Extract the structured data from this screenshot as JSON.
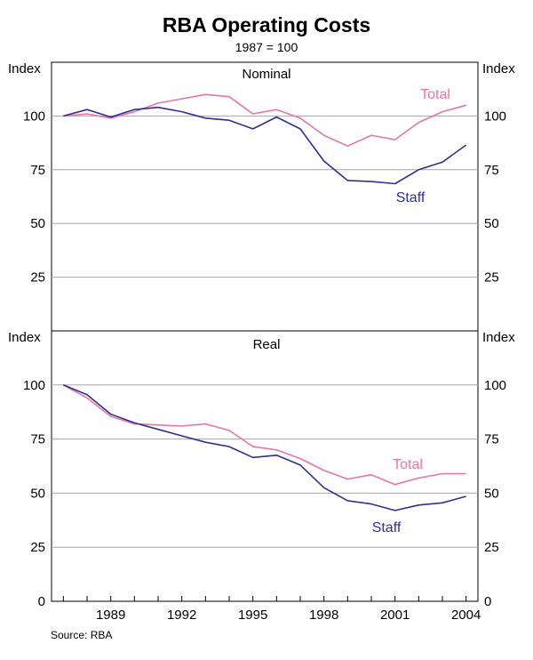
{
  "title": "RBA Operating Costs",
  "subtitle": "1987 = 100",
  "source": "Source: RBA",
  "colors": {
    "total": "#e8769f",
    "staff": "#2e3192",
    "grid": "#a6a6a6",
    "axis": "#000000"
  },
  "chart_data": [
    {
      "type": "line",
      "title": "Nominal",
      "ylabel": "Index",
      "ylim": [
        0,
        125
      ],
      "yticks": [
        25,
        50,
        75,
        100
      ],
      "xlim": [
        1986.5,
        2004.5
      ],
      "grid": true,
      "x": [
        1987,
        1988,
        1989,
        1990,
        1991,
        1992,
        1993,
        1994,
        1995,
        1996,
        1997,
        1998,
        1999,
        2000,
        2001,
        2002,
        2003,
        2004
      ],
      "series": [
        {
          "name": "Total",
          "key": "total",
          "values": [
            100,
            101,
            99,
            102,
            106,
            108,
            110,
            109,
            101,
            103,
            99,
            91,
            86,
            91,
            89,
            97,
            102,
            105
          ]
        },
        {
          "name": "Staff",
          "key": "staff",
          "values": [
            100,
            103,
            99.5,
            103,
            104,
            102,
            99,
            98,
            94,
            99.5,
            94,
            79,
            70,
            69.5,
            68.5,
            75,
            78.5,
            86.5
          ]
        }
      ]
    },
    {
      "type": "line",
      "title": "Real",
      "ylabel": "Index",
      "ylim": [
        0,
        125
      ],
      "yticks": [
        0,
        25,
        50,
        75,
        100
      ],
      "xlim": [
        1986.5,
        2004.5
      ],
      "grid": true,
      "x": [
        1987,
        1988,
        1989,
        1990,
        1991,
        1992,
        1993,
        1994,
        1995,
        1996,
        1997,
        1998,
        1999,
        2000,
        2001,
        2002,
        2003,
        2004
      ],
      "xticks": [
        "1989",
        "1992",
        "1995",
        "1998",
        "2001",
        "2004"
      ],
      "series": [
        {
          "name": "Total",
          "key": "total",
          "values": [
            100,
            94,
            85.5,
            82,
            81.5,
            81,
            82,
            79,
            71.5,
            70,
            66,
            60.5,
            56.5,
            58.5,
            54,
            57,
            59,
            59
          ]
        },
        {
          "name": "Staff",
          "key": "staff",
          "values": [
            100,
            95.5,
            86.5,
            82.5,
            79.5,
            76.5,
            73.5,
            71.5,
            66.5,
            67.5,
            63,
            52.5,
            46.5,
            45,
            42,
            44.5,
            45.5,
            48.5
          ]
        }
      ]
    }
  ]
}
